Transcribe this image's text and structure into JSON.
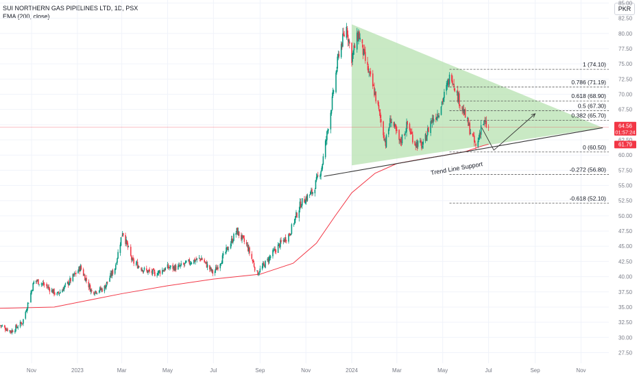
{
  "legend": {
    "title": "SUI NORTHERN GAS PIPELINES LTD, 1D, PSX",
    "indicator": "EMA (200, close)"
  },
  "currency_label": "PKR",
  "price_badge": {
    "price": "64.56",
    "countdown": "01:57:24",
    "color": "#f23645"
  },
  "ema_badge": {
    "price": "61.79",
    "color": "#f23645"
  },
  "colors": {
    "up": "#089981",
    "down": "#f23645",
    "ema": "#f23645",
    "triangle_fill": "#b7e1b0",
    "grid": "#f0f3fa",
    "axis_text": "#787b86",
    "fib": "#555555"
  },
  "annotation_text": "Trend Line Support",
  "chart_data": {
    "type": "candlestick",
    "y_axis": {
      "min": 25.75,
      "max": 85.5,
      "ticks": [
        "27.50",
        "30.00",
        "32.50",
        "35.00",
        "37.50",
        "40.00",
        "42.50",
        "45.00",
        "47.50",
        "50.00",
        "52.50",
        "55.00",
        "57.50",
        "60.00",
        "62.50",
        "65.00",
        "67.50",
        "70.00",
        "72.50",
        "75.00",
        "77.50",
        "80.00",
        "82.50",
        "85.00"
      ]
    },
    "x_axis": {
      "start": "2022-09-20",
      "end": "2024-12-08",
      "ticks": [
        {
          "label": "Nov",
          "date": "2022-11-01"
        },
        {
          "label": "2023",
          "date": "2023-01-01"
        },
        {
          "label": "Mar",
          "date": "2023-03-01"
        },
        {
          "label": "May",
          "date": "2023-05-01"
        },
        {
          "label": "Jul",
          "date": "2023-07-01"
        },
        {
          "label": "Sep",
          "date": "2023-09-01"
        },
        {
          "label": "Nov",
          "date": "2023-11-01"
        },
        {
          "label": "2024",
          "date": "2024-01-01"
        },
        {
          "label": "Mar",
          "date": "2024-03-01"
        },
        {
          "label": "May",
          "date": "2024-05-01"
        },
        {
          "label": "Jul",
          "date": "2024-07-01"
        },
        {
          "label": "Sep",
          "date": "2024-09-01"
        },
        {
          "label": "Nov",
          "date": "2024-11-01"
        }
      ]
    },
    "close_path": [
      [
        "2022-09-20",
        32.0
      ],
      [
        "2022-10-05",
        31.0
      ],
      [
        "2022-10-20",
        32.5
      ],
      [
        "2022-11-05",
        39.5
      ],
      [
        "2022-11-20",
        38.5
      ],
      [
        "2022-12-05",
        37.0
      ],
      [
        "2022-12-20",
        39.0
      ],
      [
        "2023-01-05",
        41.5
      ],
      [
        "2023-01-20",
        37.5
      ],
      [
        "2023-02-05",
        38.0
      ],
      [
        "2023-02-20",
        41.5
      ],
      [
        "2023-03-02",
        47.5
      ],
      [
        "2023-03-15",
        42.5
      ],
      [
        "2023-04-01",
        41.0
      ],
      [
        "2023-04-15",
        40.5
      ],
      [
        "2023-05-01",
        41.5
      ],
      [
        "2023-05-15",
        41.5
      ],
      [
        "2023-06-01",
        42.5
      ],
      [
        "2023-06-15",
        43.0
      ],
      [
        "2023-07-01",
        40.5
      ],
      [
        "2023-07-15",
        43.5
      ],
      [
        "2023-08-01",
        47.5
      ],
      [
        "2023-08-15",
        45.0
      ],
      [
        "2023-08-28",
        40.5
      ],
      [
        "2023-09-10",
        42.5
      ],
      [
        "2023-09-25",
        45.0
      ],
      [
        "2023-10-10",
        47.0
      ],
      [
        "2023-10-25",
        52.0
      ],
      [
        "2023-11-10",
        54.0
      ],
      [
        "2023-11-22",
        58.0
      ],
      [
        "2023-12-05",
        68.0
      ],
      [
        "2023-12-15",
        77.0
      ],
      [
        "2023-12-25",
        81.0
      ],
      [
        "2024-01-01",
        76.0
      ],
      [
        "2024-01-10",
        80.0
      ],
      [
        "2024-01-20",
        75.0
      ],
      [
        "2024-02-01",
        70.0
      ],
      [
        "2024-02-15",
        62.0
      ],
      [
        "2024-02-22",
        66.0
      ],
      [
        "2024-03-05",
        62.0
      ],
      [
        "2024-03-15",
        65.0
      ],
      [
        "2024-03-25",
        62.0
      ],
      [
        "2024-04-05",
        61.5
      ],
      [
        "2024-04-15",
        65.5
      ],
      [
        "2024-04-25",
        67.0
      ],
      [
        "2024-05-05",
        70.5
      ],
      [
        "2024-05-12",
        73.5
      ],
      [
        "2024-05-20",
        70.0
      ],
      [
        "2024-06-01",
        66.0
      ],
      [
        "2024-06-15",
        61.0
      ],
      [
        "2024-06-22",
        65.5
      ],
      [
        "2024-07-01",
        64.56
      ]
    ],
    "ema_200": [
      [
        "2022-09-20",
        34.8
      ],
      [
        "2022-12-01",
        35.0
      ],
      [
        "2023-03-01",
        37.2
      ],
      [
        "2023-05-01",
        38.5
      ],
      [
        "2023-07-01",
        39.6
      ],
      [
        "2023-09-01",
        40.4
      ],
      [
        "2023-10-15",
        42.2
      ],
      [
        "2023-11-15",
        45.5
      ],
      [
        "2023-12-10",
        50.0
      ],
      [
        "2024-01-01",
        53.8
      ],
      [
        "2024-02-01",
        57.0
      ],
      [
        "2024-03-01",
        58.6
      ],
      [
        "2024-04-01",
        59.3
      ],
      [
        "2024-05-01",
        59.9
      ],
      [
        "2024-06-01",
        60.6
      ],
      [
        "2024-06-20",
        61.4
      ],
      [
        "2024-07-01",
        61.79
      ]
    ],
    "triangle": [
      [
        "2024-01-01",
        81.5
      ],
      [
        "2024-11-30",
        64.5
      ],
      [
        "2024-01-01",
        58.3
      ]
    ],
    "support_line": [
      [
        "2023-11-25",
        56.5
      ],
      [
        "2024-11-30",
        64.5
      ]
    ],
    "projection_path": [
      [
        "2024-06-22",
        64.5
      ],
      [
        "2024-07-08",
        60.8
      ],
      [
        "2024-09-01",
        66.8
      ]
    ],
    "fib_levels": [
      {
        "label": "1 (74.10)",
        "value": 74.1,
        "start": "2024-05-10"
      },
      {
        "label": "0.786 (71.19)",
        "value": 71.19,
        "start": "2024-05-10"
      },
      {
        "label": "0.618 (68.90)",
        "value": 68.9,
        "start": "2024-05-10"
      },
      {
        "label": "0.5 (67.30)",
        "value": 67.3,
        "start": "2024-05-10"
      },
      {
        "label": "0.382 (65.70)",
        "value": 65.7,
        "start": "2024-05-10"
      },
      {
        "label": "0 (60.50)",
        "value": 60.5,
        "start": "2024-05-10"
      },
      {
        "label": "-0.272 (56.80)",
        "value": 56.8,
        "start": "2024-05-10"
      },
      {
        "label": "-0.618 (52.10)",
        "value": 52.1,
        "start": "2024-05-10"
      }
    ],
    "last_price": 64.56,
    "ema_last": 61.79
  }
}
